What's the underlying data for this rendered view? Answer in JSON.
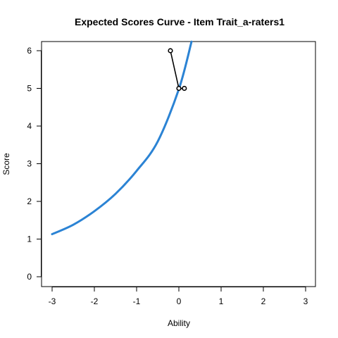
{
  "chart_data": {
    "type": "line",
    "title": "Expected Scores Curve - Item  Trait_a-raters1",
    "xlabel": "Ability",
    "ylabel": "Score",
    "xlim": [
      -3,
      3
    ],
    "ylim": [
      0,
      6
    ],
    "x_ticks": [
      "-3",
      "-2",
      "-1",
      "0",
      "1",
      "2",
      "3"
    ],
    "y_ticks": [
      "0",
      "1",
      "2",
      "3",
      "4",
      "5",
      "6"
    ],
    "grid": false,
    "legend": "none",
    "series": [
      {
        "kind": "curve",
        "color": "#2B83D4",
        "x": [
          -3.0,
          -2.5,
          -2.0,
          -1.5,
          -1.0,
          -0.5,
          0.0,
          0.3
        ],
        "y": [
          1.13,
          1.38,
          1.74,
          2.2,
          2.81,
          3.59,
          4.98,
          6.24
        ]
      },
      {
        "kind": "observed",
        "color": "#000000",
        "x": [
          -0.2,
          0.0,
          0.13
        ],
        "y": [
          6.0,
          5.0,
          5.0
        ]
      }
    ]
  }
}
